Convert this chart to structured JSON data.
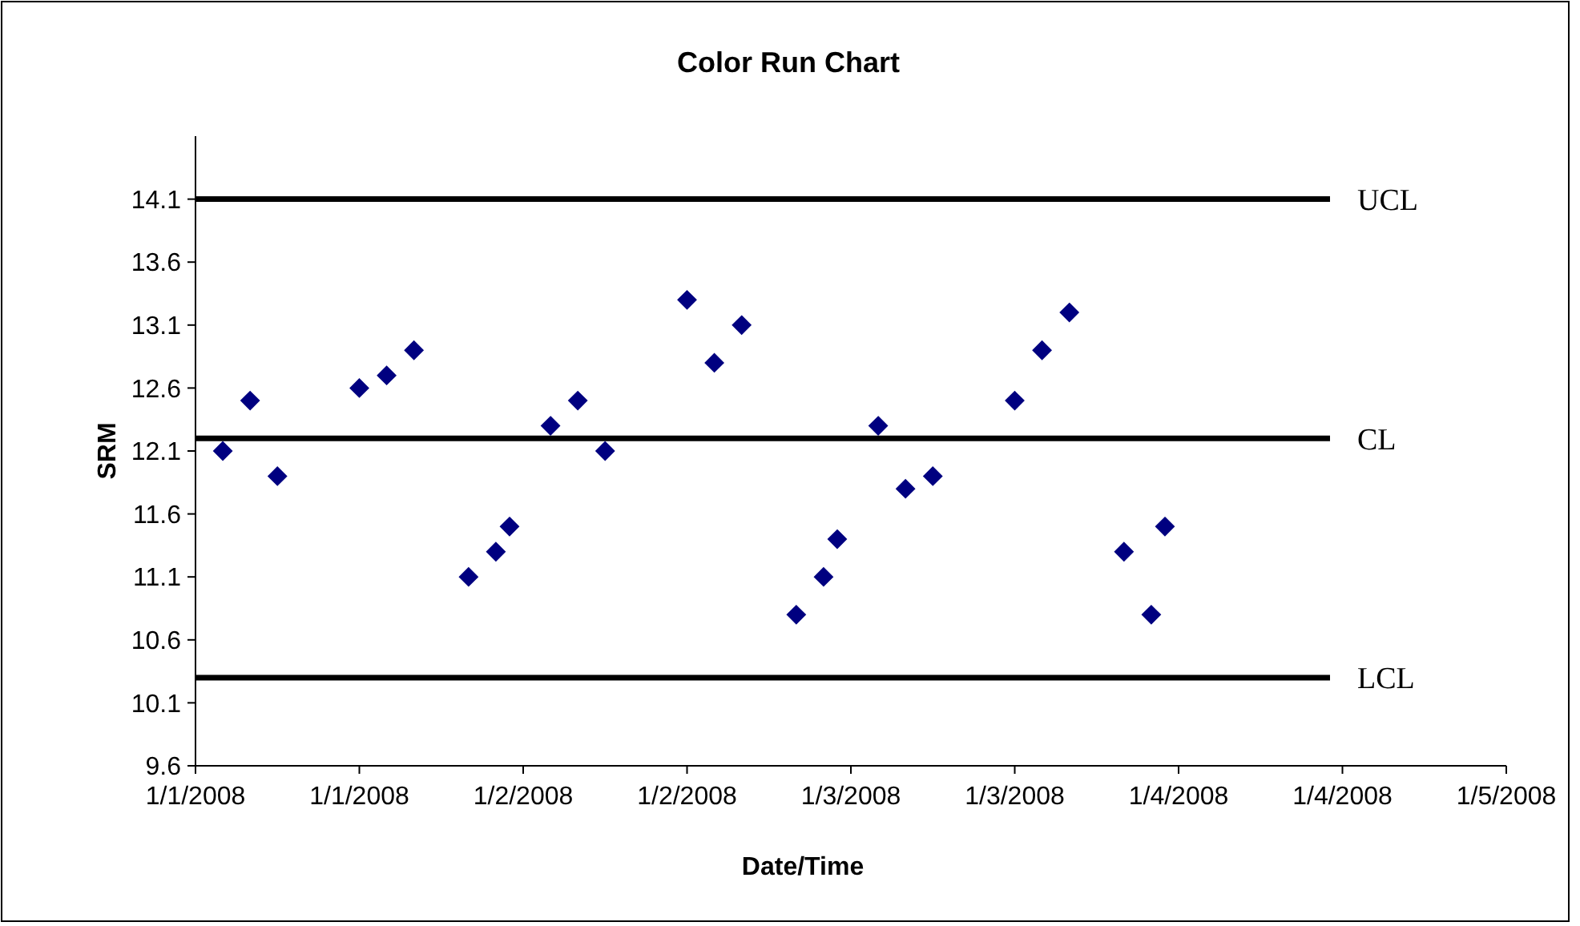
{
  "chart_data": {
    "type": "scatter",
    "title": "Color Run Chart",
    "xlabel": "Date/Time",
    "ylabel": "SRM",
    "marker": "diamond",
    "x": [
      "2008-01-01T02:00",
      "2008-01-01T04:00",
      "2008-01-01T06:00",
      "2008-01-01T12:00",
      "2008-01-01T14:00",
      "2008-01-01T16:00",
      "2008-01-01T20:00",
      "2008-01-01T22:00",
      "2008-01-01T23:00",
      "2008-01-02T02:00",
      "2008-01-02T04:00",
      "2008-01-02T06:00",
      "2008-01-02T12:00",
      "2008-01-02T14:00",
      "2008-01-02T16:00",
      "2008-01-02T20:00",
      "2008-01-02T22:00",
      "2008-01-02T23:00",
      "2008-01-03T02:00",
      "2008-01-03T04:00",
      "2008-01-03T06:00",
      "2008-01-03T12:00",
      "2008-01-03T14:00",
      "2008-01-03T16:00",
      "2008-01-03T20:00",
      "2008-01-03T22:00",
      "2008-01-03T23:00"
    ],
    "series": [
      {
        "color": "#000080",
        "values": [
          12.1,
          12.5,
          11.9,
          12.6,
          12.7,
          12.9,
          11.1,
          11.3,
          11.5,
          12.3,
          12.5,
          12.1,
          13.3,
          12.8,
          13.1,
          10.8,
          11.1,
          11.4,
          12.3,
          11.8,
          11.9,
          12.5,
          12.9,
          13.2,
          11.3,
          10.8,
          11.5
        ]
      }
    ],
    "xlim": [
      "2008-01-01T00:00",
      "2008-01-05T00:00"
    ],
    "xticks": [
      {
        "value": "2008-01-01T00:00",
        "label": "1/1/2008"
      },
      {
        "value": "2008-01-01T12:00",
        "label": "1/1/2008"
      },
      {
        "value": "2008-01-02T00:00",
        "label": "1/2/2008"
      },
      {
        "value": "2008-01-02T12:00",
        "label": "1/2/2008"
      },
      {
        "value": "2008-01-03T00:00",
        "label": "1/3/2008"
      },
      {
        "value": "2008-01-03T12:00",
        "label": "1/3/2008"
      },
      {
        "value": "2008-01-04T00:00",
        "label": "1/4/2008"
      },
      {
        "value": "2008-01-04T12:00",
        "label": "1/4/2008"
      },
      {
        "value": "2008-01-05T00:00",
        "label": "1/5/2008"
      }
    ],
    "ylim": [
      9.6,
      14.6
    ],
    "yticks": [
      9.6,
      10.1,
      10.6,
      11.1,
      11.6,
      12.1,
      12.6,
      13.1,
      13.6,
      14.1
    ],
    "ref_lines": [
      {
        "axis": "y",
        "value": 14.1,
        "label": "UCL",
        "color": "#000000"
      },
      {
        "axis": "y",
        "value": 12.2,
        "label": "CL",
        "color": "#000000"
      },
      {
        "axis": "y",
        "value": 10.3,
        "label": "LCL",
        "color": "#000000"
      }
    ]
  }
}
